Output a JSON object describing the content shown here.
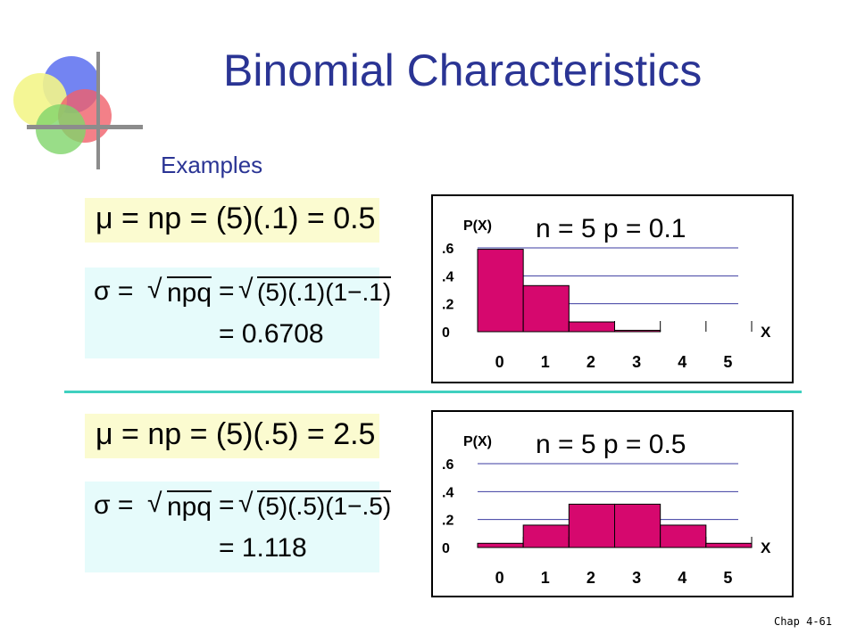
{
  "title": "Binomial Characteristics",
  "subtitle": "Examples",
  "footer": "Chap 4-61",
  "examples": [
    {
      "mean_formula": "μ = np = (5)(.1) = 0.5",
      "mean_lhs": "μ",
      "mean_rhs": "= np = (5)(.1) = 0.5",
      "sigma_lhs": "σ =",
      "sigma_rad1": "npq",
      "sigma_eq": "=",
      "sigma_rad2": "(5)(.1)(1−.1)",
      "sigma_result": "= 0.6708"
    },
    {
      "mean_formula": "μ = np = (5)(.5) = 2.5",
      "mean_lhs": "μ",
      "mean_rhs": "= np = (5)(.5) = 2.5",
      "sigma_lhs": "σ =",
      "sigma_rad1": "npq",
      "sigma_eq": "=",
      "sigma_rad2": "(5)(.5)(1−.5)",
      "sigma_result": "= 1.118"
    }
  ],
  "chart_data": [
    {
      "type": "bar",
      "title": "n = 5  p = 0.1",
      "ylabel": "P(X)",
      "xlabel": "X",
      "categories": [
        "0",
        "1",
        "2",
        "3",
        "4",
        "5"
      ],
      "values": [
        0.59,
        0.33,
        0.07,
        0.01,
        0.0,
        0.0
      ],
      "yticks": [
        ".6",
        ".4",
        ".2",
        "0"
      ],
      "ylim": [
        0,
        0.6
      ],
      "grid": true,
      "bar_color": "#d6086e"
    },
    {
      "type": "bar",
      "title": "n = 5  p = 0.5",
      "ylabel": "P(X)",
      "xlabel": "X",
      "categories": [
        "0",
        "1",
        "2",
        "3",
        "4",
        "5"
      ],
      "values": [
        0.03,
        0.16,
        0.31,
        0.31,
        0.16,
        0.03
      ],
      "yticks": [
        ".6",
        ".4",
        ".2",
        "0"
      ],
      "ylim": [
        0,
        0.6
      ],
      "grid": true,
      "bar_color": "#d6086e"
    }
  ]
}
